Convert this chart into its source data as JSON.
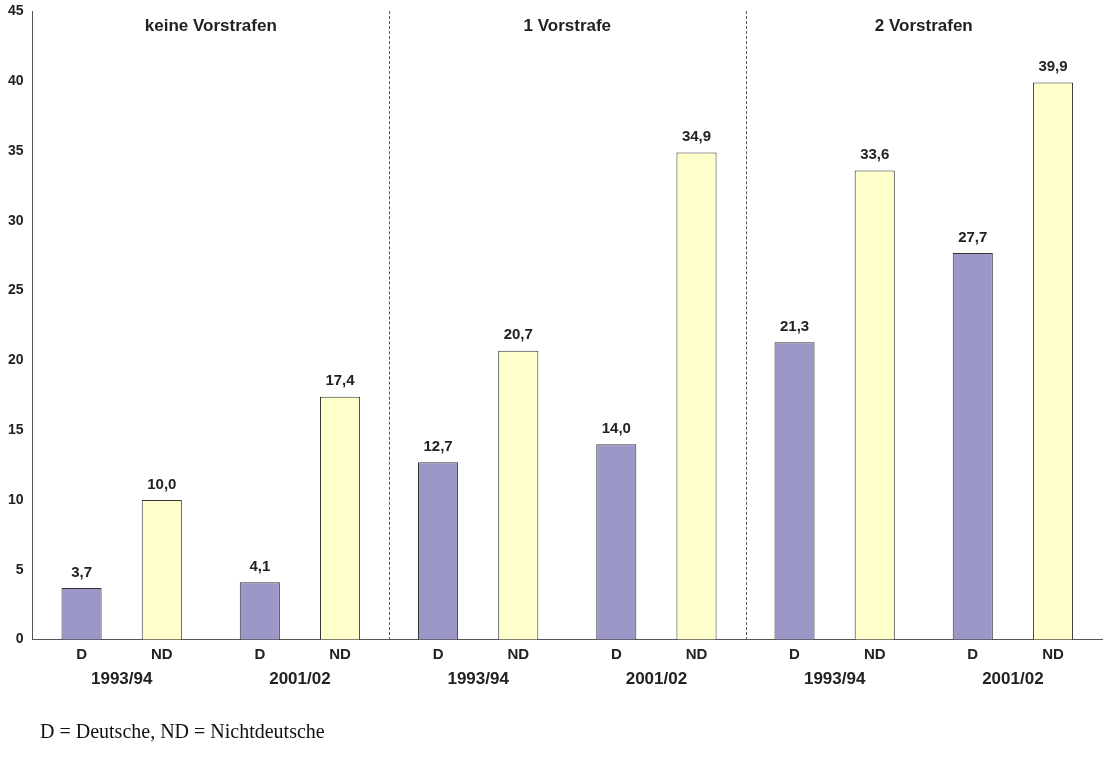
{
  "chart_data": {
    "type": "bar",
    "categories": [
      "1993/94",
      "2001/02",
      "1993/94",
      "2001/02",
      "1993/94",
      "2001/02"
    ],
    "series": [
      {
        "name": "D",
        "color": "#9b98c8",
        "values": [
          3.7,
          4.1,
          12.7,
          14.0,
          21.3,
          27.7
        ],
        "value_labels": [
          "3,7",
          "4,1",
          "12,7",
          "14,0",
          "21,3",
          "27,7"
        ]
      },
      {
        "name": "ND",
        "color": "#ffffcc",
        "values": [
          10.0,
          17.4,
          20.7,
          34.9,
          33.6,
          39.9
        ],
        "value_labels": [
          "10,0",
          "17,4",
          "20,7",
          "34,9",
          "33,6",
          "39,9"
        ]
      }
    ],
    "ylim": [
      0,
      45
    ],
    "yticks": [
      0,
      5,
      10,
      15,
      20,
      25,
      30,
      35,
      40,
      45
    ],
    "grid": false,
    "legend": false,
    "annotations": [
      "keine Vorstrafen",
      "1 Vorstrafe",
      "2 Vorstrafen",
      "D = Deutsche, ND = Nichtdeutsche"
    ]
  }
}
